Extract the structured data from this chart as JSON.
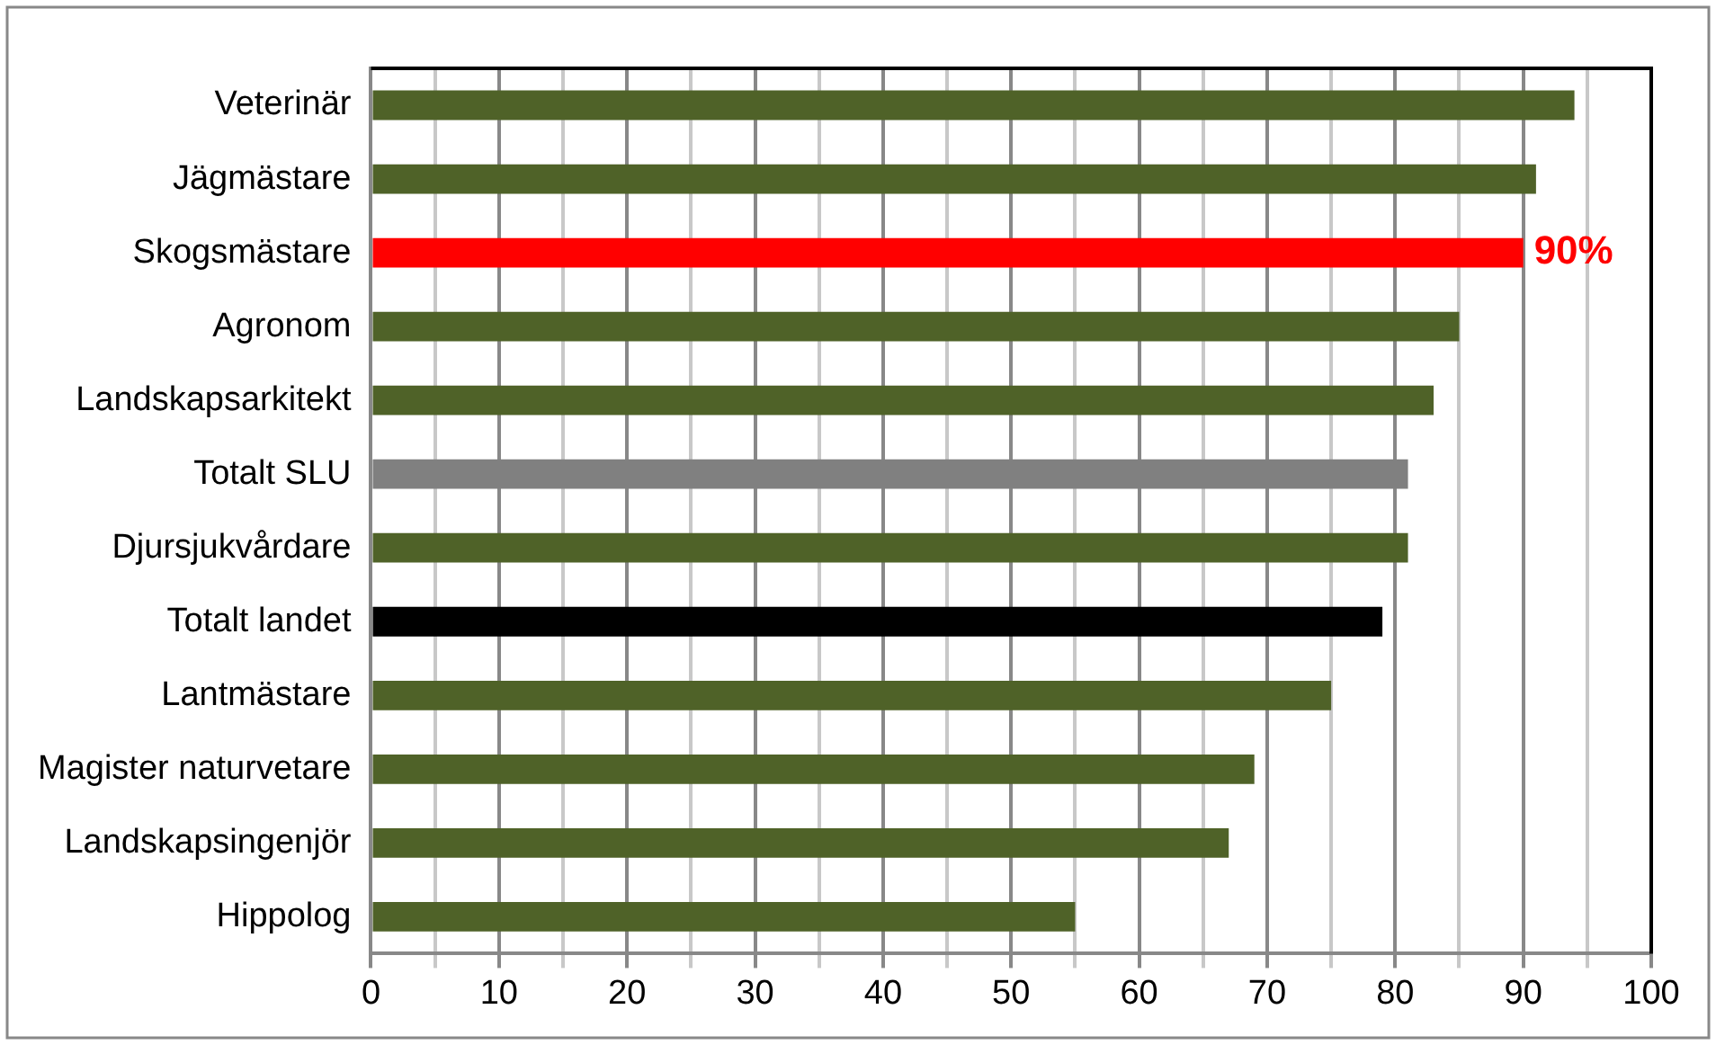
{
  "chart_data": {
    "type": "bar",
    "orientation": "horizontal",
    "categories": [
      "Veterinär",
      "Jägmästare",
      "Skogsmästare",
      "Agronom",
      "Landskapsarkitekt",
      "Totalt SLU",
      "Djursjukvårdare",
      "Totalt landet",
      "Lantmästare",
      "Magister naturvetare",
      "Landskapsingenjör",
      "Hippolog"
    ],
    "values": [
      94,
      91,
      90,
      85,
      83,
      81,
      81,
      79,
      75,
      69,
      67,
      55
    ],
    "colors": [
      "#4f6228",
      "#4f6228",
      "#ff0000",
      "#4f6228",
      "#4f6228",
      "#808080",
      "#4f6228",
      "#000000",
      "#4f6228",
      "#4f6228",
      "#4f6228",
      "#4f6228"
    ],
    "value_labels": [
      null,
      null,
      "90%",
      null,
      null,
      null,
      null,
      null,
      null,
      null,
      null,
      null
    ],
    "xlim": [
      0,
      100
    ],
    "xticks": [
      0,
      {
        "value": 5,
        "label": null
      },
      10,
      {
        "value": 15,
        "label": null
      },
      20,
      {
        "value": 25,
        "label": null
      },
      30,
      {
        "value": 35,
        "label": null
      },
      40,
      {
        "value": 45,
        "label": null
      },
      50,
      {
        "value": 55,
        "label": null
      },
      60,
      {
        "value": 65,
        "label": null
      },
      70,
      {
        "value": 75,
        "label": null
      },
      80,
      {
        "value": 85,
        "label": null
      },
      90,
      {
        "value": 95,
        "label": null
      },
      100
    ],
    "grid": "x",
    "legend": false
  }
}
